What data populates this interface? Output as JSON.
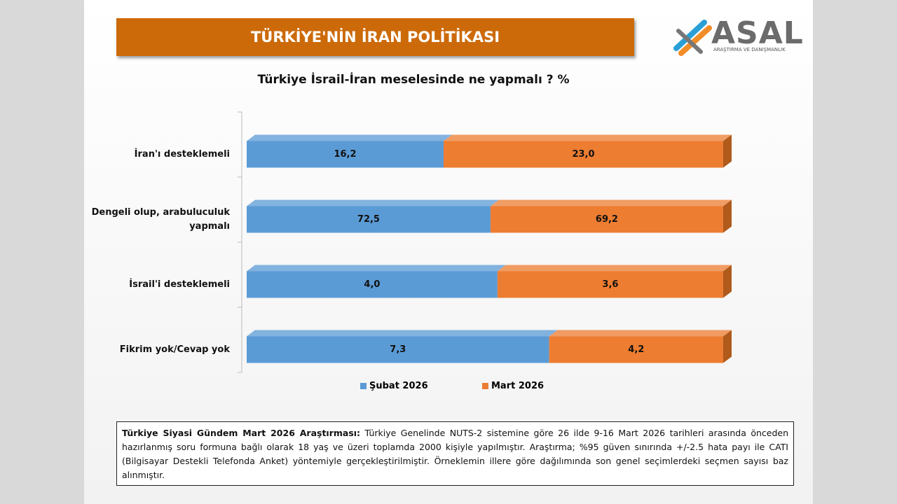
{
  "header": {
    "title": "TÜRKİYE'NİN İRAN POLİTİKASI"
  },
  "logo": {
    "name": "ASAL",
    "tagline": "ARAŞTIRMA VE DANIŞMANLIK"
  },
  "chart_data": {
    "type": "bar",
    "orientation": "horizontal",
    "stacking": "percent",
    "title": "Türkiye İsrail-İran meselesinde ne yapmalı ? %",
    "categories": [
      "İran'ı desteklemeli",
      "Dengeli olup, arabuluculuk yapmalı",
      "İsrail'i desteklemeli",
      "Fikrim yok/Cevap yok"
    ],
    "series": [
      {
        "name": "Şubat 2026",
        "color": "#5b9bd5",
        "values": [
          16.2,
          72.5,
          4.0,
          7.3
        ],
        "value_labels": [
          "16,2",
          "72,5",
          "4,0",
          "7,3"
        ]
      },
      {
        "name": "Mart 2026",
        "color": "#ed7d31",
        "values": [
          23.0,
          69.2,
          3.6,
          4.2
        ],
        "value_labels": [
          "23,0",
          "69,2",
          "3,6",
          "4,2"
        ]
      }
    ],
    "legend": "bottom"
  },
  "note": {
    "lead": "Türkiye Siyasi Gündem Mart 2026 Araştırması:",
    "text": "Türkiye Genelinde NUTS-2 sistemine göre 26 ilde 9-16 Mart 2026 tarihleri arasında önceden hazırlanmış soru formuna bağlı olarak 18 yaş ve üzeri toplamda 2000 kişiyle yapılmıştır. Araştırma; %95 güven sınırında +/-2.5 hata payı ile CATI (Bilgisayar Destekli Telefonda Anket) yöntemiyle gerçekleştirilmiştir. Örneklemin illere göre dağılımında son genel seçimlerdeki seçmen sayısı baz alınmıştır."
  }
}
